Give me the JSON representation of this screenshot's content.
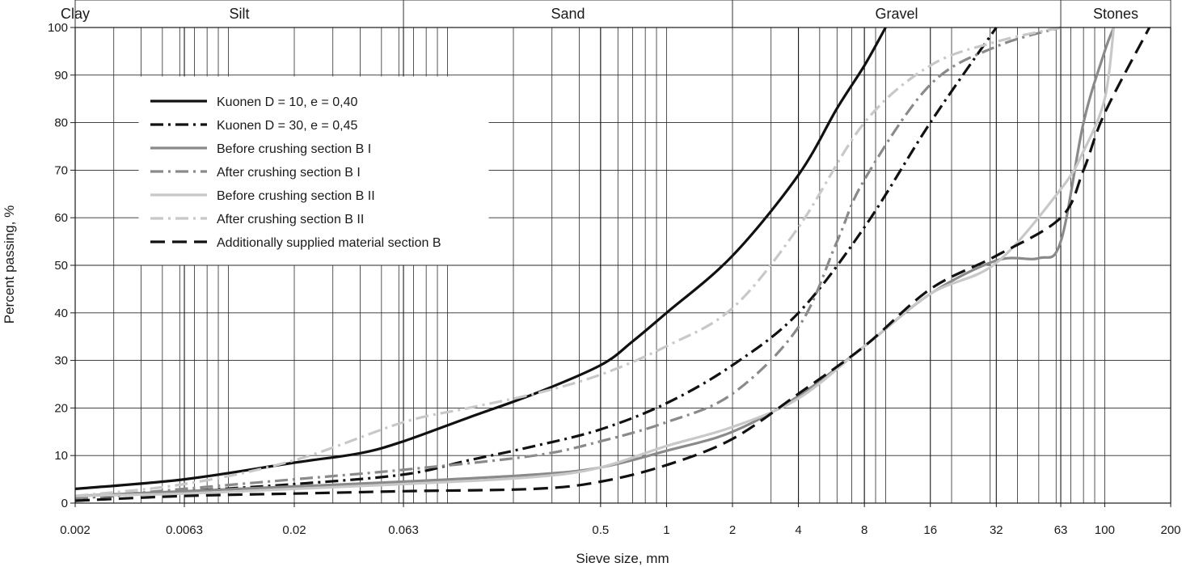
{
  "chart_data": {
    "type": "line",
    "title": "",
    "xlabel": "Sieve size, mm",
    "ylabel": "Percent passing, %",
    "x_scale": "log",
    "xlim": [
      0.002,
      200
    ],
    "ylim": [
      0,
      100
    ],
    "grid": true,
    "legend_position": "top-left",
    "x_tick_labels": [
      "0.002",
      "0.0063",
      "0.02",
      "0.063",
      "0.5",
      "1",
      "2",
      "4",
      "8",
      "16",
      "32",
      "63",
      "100",
      "200"
    ],
    "y_tick_labels": [
      "0",
      "10",
      "20",
      "30",
      "40",
      "50",
      "60",
      "70",
      "80",
      "90",
      "100"
    ],
    "soil_bands": [
      {
        "label": "Clay",
        "from": 0.002
      },
      {
        "label": "Silt",
        "from": 0.002,
        "to": 0.063
      },
      {
        "label": "Sand",
        "from": 0.063,
        "to": 2
      },
      {
        "label": "Gravel",
        "from": 2,
        "to": 63
      },
      {
        "label": "Stones",
        "from": 63,
        "to": 200
      }
    ],
    "series": [
      {
        "name": "Kuonen D = 10, e = 0,40",
        "color": "#111111",
        "dash": "solid",
        "x": [
          0.002,
          0.0063,
          0.02,
          0.04,
          0.063,
          0.125,
          0.25,
          0.5,
          0.7,
          1,
          2,
          4,
          6,
          8,
          10
        ],
        "y": [
          3,
          5,
          8.5,
          10.5,
          13,
          18,
          23,
          29,
          34,
          40,
          52,
          69,
          83,
          92,
          100
        ]
      },
      {
        "name": "Kuonen D = 30, e = 0,45",
        "color": "#111111",
        "dash": "dashdot",
        "x": [
          0.002,
          0.0063,
          0.02,
          0.063,
          0.125,
          0.25,
          0.5,
          1,
          2,
          4,
          8,
          16,
          32
        ],
        "y": [
          1,
          2.5,
          4,
          6,
          9,
          12,
          15.5,
          21,
          29,
          40,
          58,
          80,
          100
        ]
      },
      {
        "name": "Before crushing section B I",
        "color": "#8a8a8a",
        "dash": "solid",
        "x": [
          0.002,
          0.0063,
          0.02,
          0.063,
          0.25,
          0.5,
          1,
          2,
          4,
          8,
          16,
          32,
          50,
          63,
          80,
          100,
          110
        ],
        "y": [
          1.5,
          2.5,
          3.5,
          4.5,
          6,
          7.5,
          11,
          15,
          22.5,
          33,
          44,
          51,
          51.5,
          55,
          80,
          95,
          100
        ]
      },
      {
        "name": "After crushing section B I",
        "color": "#8a8a8a",
        "dash": "dashdot",
        "x": [
          0.002,
          0.0063,
          0.02,
          0.063,
          0.25,
          0.5,
          1,
          2,
          4,
          6,
          8,
          16,
          32,
          63
        ],
        "y": [
          1,
          3,
          5,
          7,
          10,
          13,
          17,
          23,
          37,
          55,
          68,
          88,
          96,
          100
        ]
      },
      {
        "name": "Before crushing section B II",
        "color": "#c8c8c8",
        "dash": "solid",
        "x": [
          0.002,
          0.0063,
          0.02,
          0.063,
          0.25,
          0.5,
          1,
          2,
          4,
          8,
          16,
          32,
          63,
          80,
          100,
          110
        ],
        "y": [
          1.5,
          2,
          3,
          4,
          5.5,
          7.5,
          12,
          16,
          22,
          33,
          44,
          50.5,
          66,
          74,
          85,
          100
        ]
      },
      {
        "name": "After crushing section B II",
        "color": "#c8c8c8",
        "dash": "dashdot",
        "x": [
          0.002,
          0.0063,
          0.02,
          0.063,
          0.125,
          0.25,
          0.5,
          1,
          2,
          4,
          8,
          16,
          32,
          63
        ],
        "y": [
          1.5,
          4,
          9,
          17,
          20,
          23,
          27,
          33,
          41,
          58,
          80,
          92,
          97,
          100
        ]
      },
      {
        "name": "Additionally supplied material section B",
        "color": "#111111",
        "dash": "dashed",
        "x": [
          0.002,
          0.0063,
          0.02,
          0.063,
          0.25,
          0.5,
          1,
          2,
          4,
          8,
          16,
          32,
          63,
          80,
          100,
          160
        ],
        "y": [
          0.5,
          1.5,
          2,
          2.5,
          3,
          4.5,
          8,
          13.5,
          23,
          33,
          45,
          52,
          60,
          70,
          82,
          100
        ]
      }
    ]
  }
}
